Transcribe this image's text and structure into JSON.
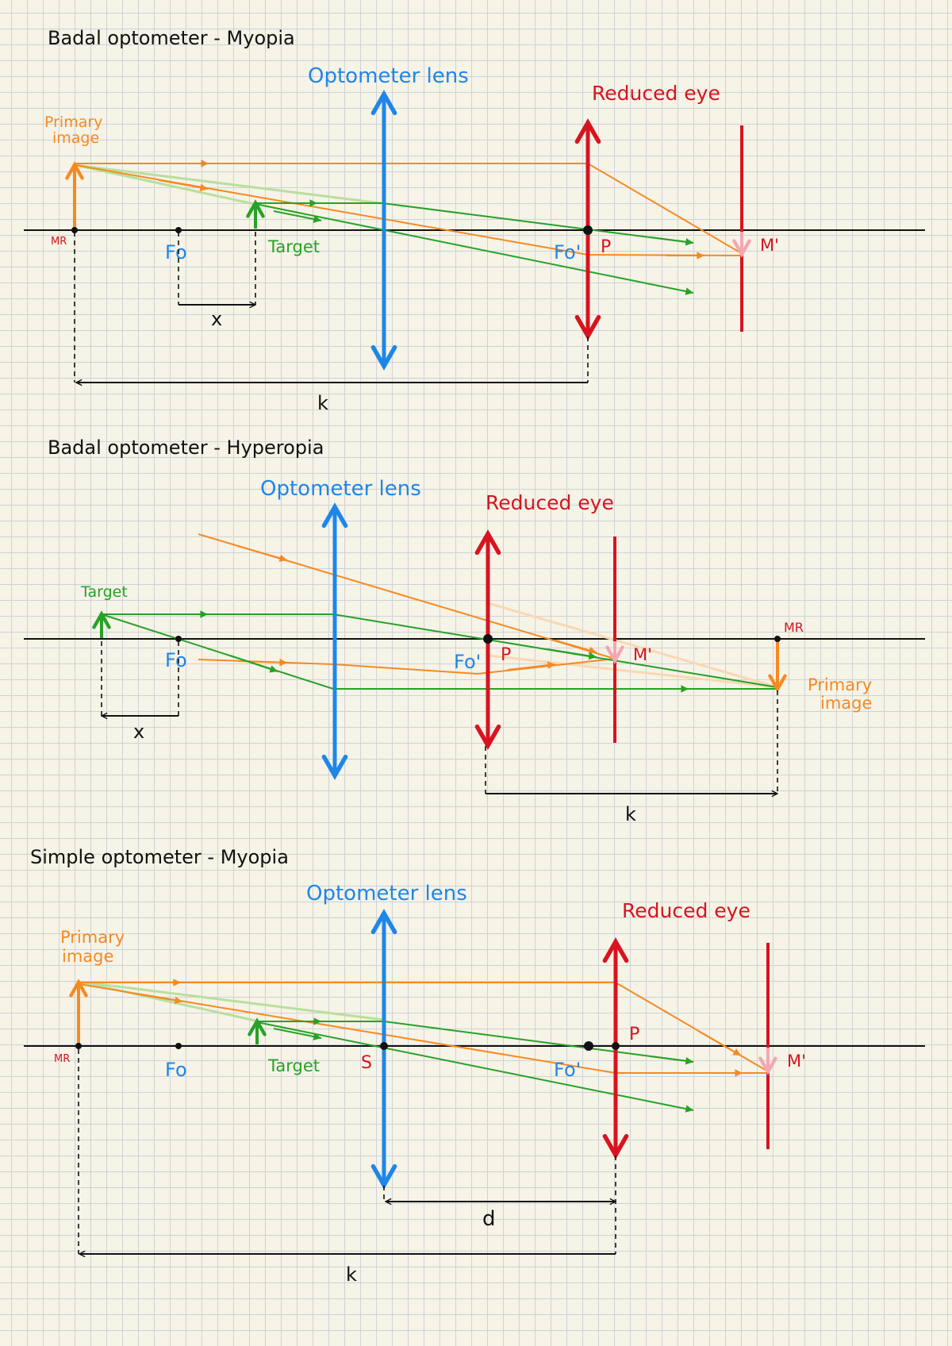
{
  "colors": {
    "axis": "#111111",
    "lens": "#1f86e8",
    "eye": "#d7141f",
    "orange": "#f58a22",
    "green": "#26a226",
    "lightgreen": "#b9df9d",
    "lightorange": "#f9d8b4",
    "pink": "#f4a7b3"
  },
  "panels": {
    "p1": {
      "title": "Badal optometer - Myopia",
      "lens_label": "Optometer lens",
      "eye_label": "Reduced eye",
      "primary_image_line1": "Primary",
      "primary_image_line2": "image",
      "target_label": "Target",
      "mr_label": "MR",
      "fo_label": "Fo",
      "fo_prime_label": "Fo'",
      "p_label": "P",
      "m_prime_label": "M'",
      "x_label": "x",
      "k_label": "k"
    },
    "p2": {
      "title": "Badal optometer - Hyperopia",
      "lens_label": "Optometer lens",
      "eye_label": "Reduced eye",
      "primary_image_line1": "Primary",
      "primary_image_line2": "image",
      "target_label": "Target",
      "mr_label": "MR",
      "fo_label": "Fo",
      "fo_prime_label": "Fo'",
      "p_label": "P",
      "m_prime_label": "M'",
      "x_label": "x",
      "k_label": "k"
    },
    "p3": {
      "title": "Simple optometer - Myopia",
      "lens_label": "Optometer lens",
      "eye_label": "Reduced eye",
      "primary_image_line1": "Primary",
      "primary_image_line2": "image",
      "target_label": "Target",
      "mr_label": "MR",
      "fo_label": "Fo",
      "fo_prime_label": "Fo'",
      "s_label": "S",
      "p_label": "P",
      "m_prime_label": "M'",
      "d_label": "d",
      "k_label": "k"
    }
  }
}
